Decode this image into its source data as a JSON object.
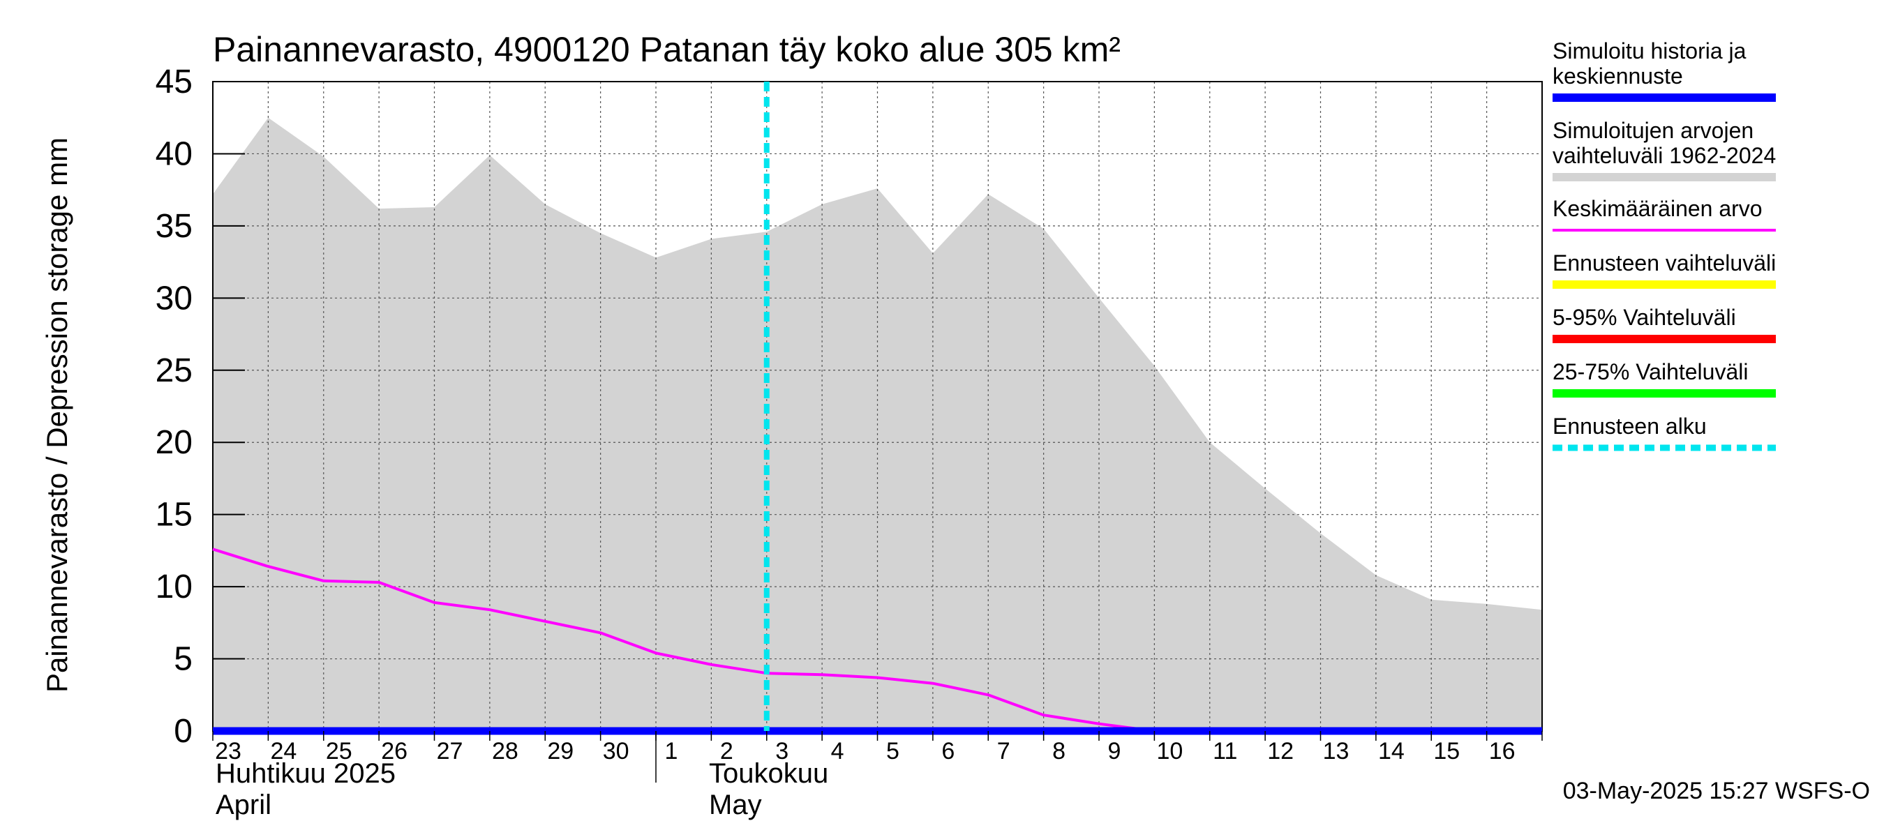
{
  "chart_data": {
    "type": "area",
    "title": "Painannevarasto, 4900120 Patanan täy koko alue 305 km²",
    "ylabel": "Painannevarasto / Depression storage    mm",
    "ylim": [
      0,
      45
    ],
    "yticks": [
      0,
      5,
      10,
      15,
      20,
      25,
      30,
      35,
      40,
      45
    ],
    "grid": true,
    "legend_position": "right",
    "x_dates": [
      "2025-04-23",
      "2025-04-24",
      "2025-04-25",
      "2025-04-26",
      "2025-04-27",
      "2025-04-28",
      "2025-04-29",
      "2025-04-30",
      "2025-05-01",
      "2025-05-02",
      "2025-05-03",
      "2025-05-04",
      "2025-05-05",
      "2025-05-06",
      "2025-05-07",
      "2025-05-08",
      "2025-05-09",
      "2025-05-10",
      "2025-05-11",
      "2025-05-12",
      "2025-05-13",
      "2025-05-14",
      "2025-05-15",
      "2025-05-16",
      "2025-05-17"
    ],
    "xtick_labels": [
      "23",
      "24",
      "25",
      "26",
      "27",
      "28",
      "29",
      "30",
      "1",
      "2",
      "3",
      "4",
      "5",
      "6",
      "7",
      "8",
      "9",
      "10",
      "11",
      "12",
      "13",
      "14",
      "15",
      "16"
    ],
    "month_labels": [
      {
        "fi": "Huhtikuu  2025",
        "en": "April"
      },
      {
        "fi": "Toukokuu",
        "en": "May"
      }
    ],
    "series": [
      {
        "name": "Simuloitujen arvojen vaihteluväli 1962-2024",
        "kind": "band",
        "color": "#d3d3d3",
        "lower": [
          0,
          0,
          0,
          0,
          0,
          0,
          0,
          0,
          0,
          0,
          0,
          0,
          0,
          0,
          0,
          0,
          0,
          0,
          0,
          0,
          0,
          0,
          0,
          0,
          0
        ],
        "upper": [
          37.2,
          42.5,
          39.8,
          36.2,
          36.3,
          39.9,
          36.5,
          34.5,
          32.8,
          34.1,
          34.6,
          36.5,
          37.6,
          33.1,
          37.2,
          34.8,
          30.0,
          25.3,
          20.0,
          16.8,
          13.7,
          10.8,
          9.1,
          8.8,
          8.4
        ]
      },
      {
        "name": "Keskimääräinen arvo",
        "kind": "line",
        "color": "#ff00ff",
        "values": [
          12.6,
          11.4,
          10.4,
          10.3,
          8.9,
          8.4,
          7.6,
          6.8,
          5.4,
          4.6,
          4.0,
          3.9,
          3.7,
          3.3,
          2.5,
          1.1,
          0.5,
          0,
          0,
          0,
          0,
          0,
          0,
          0,
          0
        ]
      },
      {
        "name": "Simuloitu historia ja keskiennuste",
        "kind": "line",
        "color": "#0000ff",
        "values": [
          0,
          0,
          0,
          0,
          0,
          0,
          0,
          0,
          0,
          0,
          0,
          0,
          0,
          0,
          0,
          0,
          0,
          0,
          0,
          0,
          0,
          0,
          0,
          0,
          0
        ]
      }
    ],
    "forecast_start": "2025-05-03",
    "legend": [
      {
        "label": "Simuloitu historia ja keskiennuste",
        "color": "#0000ff",
        "style": "solid"
      },
      {
        "label": "Simuloitujen arvojen vaihteluväli 1962-2024",
        "color": "#d3d3d3",
        "style": "solid"
      },
      {
        "label": "Keskimääräinen arvo",
        "color": "#ff00ff",
        "style": "thin"
      },
      {
        "label": "Ennusteen vaihteluväli",
        "color": "#ffff00",
        "style": "solid"
      },
      {
        "label": "5-95% Vaihteluväli",
        "color": "#ff0000",
        "style": "solid"
      },
      {
        "label": "25-75% Vaihteluväli",
        "color": "#00ff00",
        "style": "solid"
      },
      {
        "label": "Ennusteen alku",
        "color": "#00e5ee",
        "style": "dashed"
      }
    ],
    "footer": "03-May-2025 15:27 WSFS-O"
  }
}
